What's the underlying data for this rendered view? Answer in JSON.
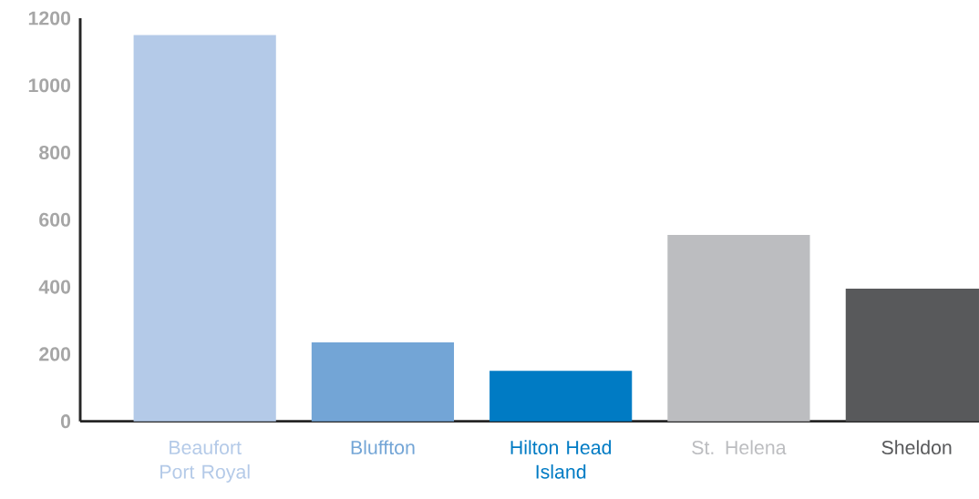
{
  "chart_data": {
    "type": "bar",
    "categories": [
      "Beaufort Port Royal",
      "Bluffton",
      "Hilton Head Island",
      "St. Helena",
      "Sheldon"
    ],
    "values": [
      1150,
      235,
      150,
      555,
      395
    ],
    "colors": [
      "#b4cae8",
      "#73a5d6",
      "#007bc4",
      "#bcbdc0",
      "#58595b"
    ],
    "ylim": [
      0,
      1200
    ],
    "yticks": [
      0,
      200,
      400,
      600,
      800,
      1000,
      1200
    ]
  }
}
